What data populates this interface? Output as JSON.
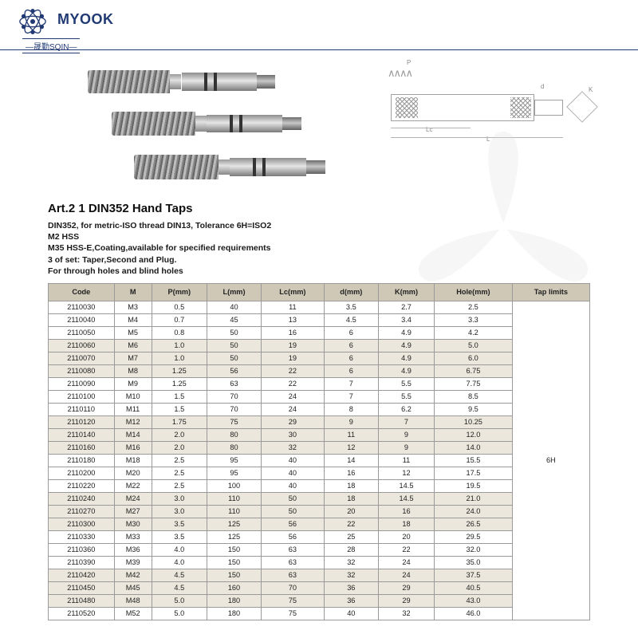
{
  "brand": {
    "name": "MYOOK",
    "sub": "—晟勤SQIN—",
    "logo_color": "#213a73"
  },
  "title": "Art.2 1 DIN352 Hand Taps",
  "description": "DIN352, for metric-ISO thread DIN13, Tolerance 6H=ISO2\nM2 HSS\nM35 HSS-E,Coating,available for specified requirements\n3 of set: Taper,Second and Plug.\nFor through holes and blind holes",
  "diagram_labels": {
    "p": "P",
    "lc": "Lc",
    "l": "L",
    "d": "d",
    "k": "K"
  },
  "table": {
    "columns": [
      "Code",
      "M",
      "P(mm)",
      "L(mm)",
      "Lc(mm)",
      "d(mm)",
      "K(mm)",
      "Hole(mm)",
      "Tap limits"
    ],
    "tap_limits": "6H",
    "header_bg": "#cfc8b7",
    "alt_bg": "#ebe7dc",
    "border_color": "#9a9a9a",
    "rows": [
      [
        "2110030",
        "M3",
        "0.5",
        "40",
        "11",
        "3.5",
        "2.7",
        "2.5"
      ],
      [
        "2110040",
        "M4",
        "0.7",
        "45",
        "13",
        "4.5",
        "3.4",
        "3.3"
      ],
      [
        "2110050",
        "M5",
        "0.8",
        "50",
        "16",
        "6",
        "4.9",
        "4.2"
      ],
      [
        "2110060",
        "M6",
        "1.0",
        "50",
        "19",
        "6",
        "4.9",
        "5.0"
      ],
      [
        "2110070",
        "M7",
        "1.0",
        "50",
        "19",
        "6",
        "4.9",
        "6.0"
      ],
      [
        "2110080",
        "M8",
        "1.25",
        "56",
        "22",
        "6",
        "4.9",
        "6.75"
      ],
      [
        "2110090",
        "M9",
        "1.25",
        "63",
        "22",
        "7",
        "5.5",
        "7.75"
      ],
      [
        "2110100",
        "M10",
        "1.5",
        "70",
        "24",
        "7",
        "5.5",
        "8.5"
      ],
      [
        "2110110",
        "M11",
        "1.5",
        "70",
        "24",
        "8",
        "6.2",
        "9.5"
      ],
      [
        "2110120",
        "M12",
        "1.75",
        "75",
        "29",
        "9",
        "7",
        "10.25"
      ],
      [
        "2110140",
        "M14",
        "2.0",
        "80",
        "30",
        "11",
        "9",
        "12.0"
      ],
      [
        "2110160",
        "M16",
        "2.0",
        "80",
        "32",
        "12",
        "9",
        "14.0"
      ],
      [
        "2110180",
        "M18",
        "2.5",
        "95",
        "40",
        "14",
        "11",
        "15.5"
      ],
      [
        "2110200",
        "M20",
        "2.5",
        "95",
        "40",
        "16",
        "12",
        "17.5"
      ],
      [
        "2110220",
        "M22",
        "2.5",
        "100",
        "40",
        "18",
        "14.5",
        "19.5"
      ],
      [
        "2110240",
        "M24",
        "3.0",
        "110",
        "50",
        "18",
        "14.5",
        "21.0"
      ],
      [
        "2110270",
        "M27",
        "3.0",
        "110",
        "50",
        "20",
        "16",
        "24.0"
      ],
      [
        "2110300",
        "M30",
        "3.5",
        "125",
        "56",
        "22",
        "18",
        "26.5"
      ],
      [
        "2110330",
        "M33",
        "3.5",
        "125",
        "56",
        "25",
        "20",
        "29.5"
      ],
      [
        "2110360",
        "M36",
        "4.0",
        "150",
        "63",
        "28",
        "22",
        "32.0"
      ],
      [
        "2110390",
        "M39",
        "4.0",
        "150",
        "63",
        "32",
        "24",
        "35.0"
      ],
      [
        "2110420",
        "M42",
        "4.5",
        "150",
        "63",
        "32",
        "24",
        "37.5"
      ],
      [
        "2110450",
        "M45",
        "4.5",
        "160",
        "70",
        "36",
        "29",
        "40.5"
      ],
      [
        "2110480",
        "M48",
        "5.0",
        "180",
        "75",
        "36",
        "29",
        "43.0"
      ],
      [
        "2110520",
        "M52",
        "5.0",
        "180",
        "75",
        "40",
        "32",
        "46.0"
      ]
    ],
    "alt_row_indices": [
      3,
      4,
      5,
      9,
      10,
      11,
      15,
      16,
      17,
      21,
      22,
      23
    ]
  }
}
